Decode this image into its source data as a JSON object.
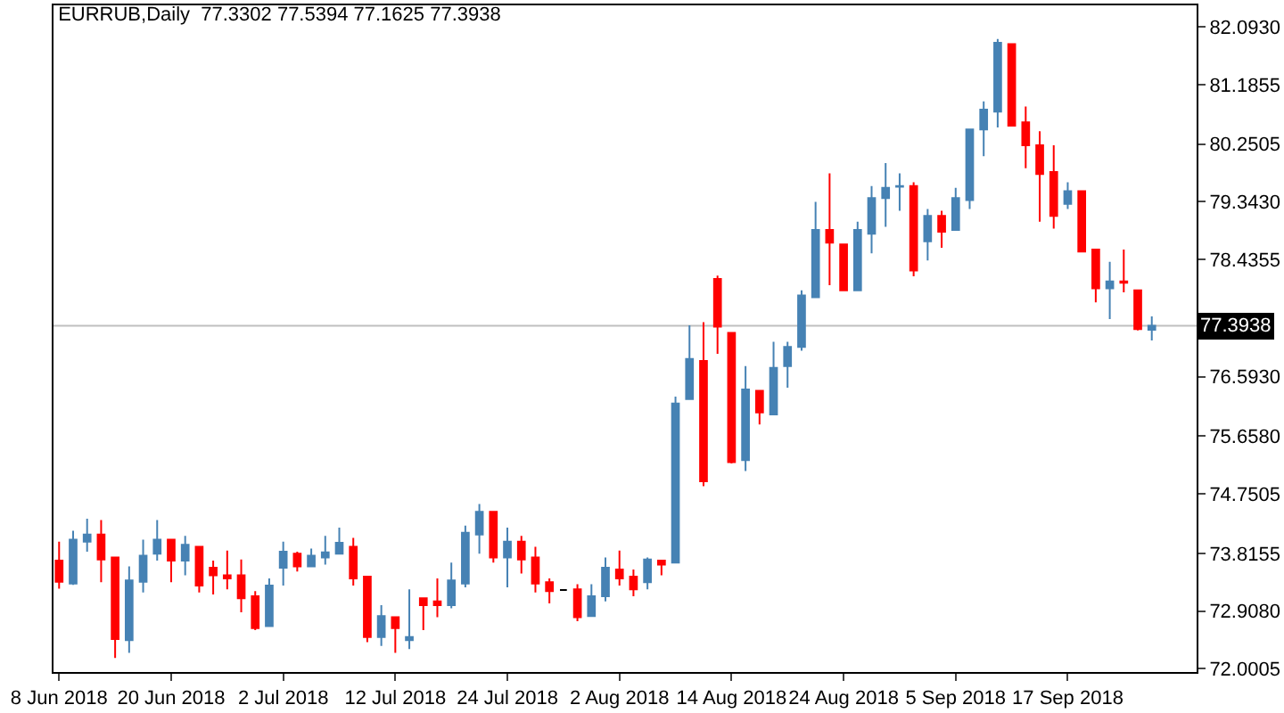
{
  "chart_data": {
    "type": "candlestick",
    "title": "EURRUB,Daily  77.3302 77.5394 77.1625 77.3938",
    "categories": [
      "8 Jun 2018",
      null,
      null,
      null,
      null,
      null,
      null,
      null,
      "20 Jun 2018",
      null,
      null,
      null,
      null,
      null,
      null,
      null,
      "2 Jul 2018",
      null,
      null,
      null,
      null,
      null,
      null,
      null,
      "12 Jul 2018",
      null,
      null,
      null,
      null,
      null,
      null,
      null,
      "24 Jul 2018",
      null,
      null,
      null,
      null,
      null,
      null,
      null,
      "2 Aug 2018",
      null,
      null,
      null,
      null,
      null,
      null,
      null,
      "14 Aug 2018",
      null,
      null,
      null,
      null,
      null,
      null,
      null,
      "24 Aug 2018",
      null,
      null,
      null,
      null,
      null,
      null,
      null,
      "5 Sep 2018",
      null,
      null,
      null,
      null,
      null,
      null,
      null,
      "17 Sep 2018",
      null,
      null,
      null,
      null,
      null,
      null
    ],
    "ohlc": [
      [
        73.7,
        74.0,
        73.26,
        73.37
      ],
      [
        73.34,
        74.17,
        73.32,
        74.03
      ],
      [
        74.0,
        74.36,
        73.84,
        74.11
      ],
      [
        74.11,
        74.34,
        73.36,
        73.72
      ],
      [
        73.75,
        73.75,
        72.17,
        72.47
      ],
      [
        72.45,
        73.61,
        72.25,
        73.39
      ],
      [
        73.37,
        74.03,
        73.2,
        73.78
      ],
      [
        73.81,
        74.34,
        73.7,
        74.03
      ],
      [
        74.03,
        74.03,
        73.36,
        73.7
      ],
      [
        73.7,
        74.09,
        73.47,
        73.95
      ],
      [
        73.92,
        73.92,
        73.2,
        73.31
      ],
      [
        73.59,
        73.7,
        73.17,
        73.47
      ],
      [
        73.47,
        73.86,
        73.25,
        73.42
      ],
      [
        73.47,
        73.72,
        72.89,
        73.11
      ],
      [
        73.14,
        73.22,
        72.61,
        72.64
      ],
      [
        72.67,
        73.42,
        72.67,
        73.31
      ],
      [
        73.59,
        74.0,
        73.31,
        73.84
      ],
      [
        73.81,
        73.84,
        73.53,
        73.61
      ],
      [
        73.61,
        73.89,
        73.61,
        73.78
      ],
      [
        73.75,
        74.09,
        73.64,
        73.83
      ],
      [
        73.81,
        74.22,
        73.81,
        73.98
      ],
      [
        73.92,
        74.06,
        73.31,
        73.42
      ],
      [
        73.45,
        73.45,
        72.42,
        72.5
      ],
      [
        72.5,
        73.0,
        72.36,
        72.83
      ],
      [
        72.81,
        72.81,
        72.25,
        72.64
      ],
      [
        72.45,
        73.25,
        72.31,
        72.5
      ],
      [
        73.11,
        73.11,
        72.61,
        73.0
      ],
      [
        73.06,
        73.42,
        72.81,
        73.0
      ],
      [
        73.0,
        73.67,
        72.95,
        73.39
      ],
      [
        73.34,
        74.25,
        73.28,
        74.14
      ],
      [
        74.11,
        74.59,
        73.81,
        74.47
      ],
      [
        74.47,
        74.47,
        73.67,
        73.75
      ],
      [
        73.75,
        74.22,
        73.28,
        74.0
      ],
      [
        74.0,
        74.09,
        73.5,
        73.72
      ],
      [
        73.75,
        73.92,
        73.2,
        73.34
      ],
      [
        73.36,
        73.42,
        73.03,
        73.22
      ],
      [
        73.24,
        73.24,
        73.24,
        73.24
      ],
      [
        73.25,
        73.33,
        72.75,
        72.81
      ],
      [
        72.83,
        73.33,
        72.83,
        73.14
      ],
      [
        73.14,
        73.75,
        73.06,
        73.59
      ],
      [
        73.56,
        73.86,
        73.31,
        73.42
      ],
      [
        73.45,
        73.56,
        73.14,
        73.25
      ],
      [
        73.36,
        73.75,
        73.25,
        73.72
      ],
      [
        73.7,
        73.7,
        73.47,
        73.64
      ],
      [
        73.67,
        76.28,
        73.67,
        76.17
      ],
      [
        76.24,
        77.4,
        76.24,
        76.87
      ],
      [
        76.84,
        77.45,
        74.87,
        74.95
      ],
      [
        78.13,
        78.18,
        76.95,
        77.38
      ],
      [
        77.28,
        77.28,
        75.23,
        75.25
      ],
      [
        75.28,
        76.76,
        75.11,
        76.39
      ],
      [
        76.37,
        76.37,
        75.84,
        76.03
      ],
      [
        76.0,
        77.14,
        76.0,
        76.73
      ],
      [
        76.76,
        77.14,
        76.42,
        77.06
      ],
      [
        77.06,
        77.95,
        77.0,
        77.87
      ],
      [
        77.84,
        79.34,
        77.84,
        78.9
      ],
      [
        78.9,
        79.79,
        78.03,
        78.7
      ],
      [
        78.67,
        78.67,
        77.95,
        77.95
      ],
      [
        77.95,
        79.03,
        77.95,
        78.9
      ],
      [
        78.84,
        79.59,
        78.53,
        79.4
      ],
      [
        79.4,
        79.95,
        78.95,
        79.56
      ],
      [
        79.58,
        79.79,
        79.2,
        79.59
      ],
      [
        79.59,
        79.65,
        78.17,
        78.26
      ],
      [
        78.72,
        79.23,
        78.42,
        79.12
      ],
      [
        79.12,
        79.2,
        78.62,
        78.87
      ],
      [
        78.9,
        79.56,
        78.9,
        79.4
      ],
      [
        79.37,
        80.48,
        79.23,
        80.48
      ],
      [
        80.48,
        80.92,
        80.06,
        80.79
      ],
      [
        80.76,
        81.9,
        80.51,
        81.84
      ],
      [
        81.82,
        81.82,
        80.54,
        80.54
      ],
      [
        80.59,
        80.84,
        79.87,
        80.23
      ],
      [
        80.23,
        80.45,
        79.03,
        79.78
      ],
      [
        79.81,
        80.23,
        78.92,
        79.12
      ],
      [
        79.31,
        79.65,
        79.23,
        79.51
      ],
      [
        79.51,
        79.51,
        78.56,
        78.56
      ],
      [
        78.59,
        78.59,
        77.76,
        77.98
      ],
      [
        77.98,
        78.4,
        77.5,
        78.09
      ],
      [
        78.09,
        78.59,
        77.92,
        78.07
      ],
      [
        77.95,
        77.95,
        77.32,
        77.34
      ],
      [
        77.3302,
        77.5394,
        77.1625,
        77.3938
      ]
    ],
    "colors": [
      "#ff0000",
      "#4682b4",
      "#4682b4",
      "#ff0000",
      "#ff0000",
      "#4682b4",
      "#4682b4",
      "#4682b4",
      "#ff0000",
      "#4682b4",
      "#ff0000",
      "#ff0000",
      "#ff0000",
      "#ff0000",
      "#ff0000",
      "#4682b4",
      "#4682b4",
      "#ff0000",
      "#4682b4",
      "#4682b4",
      "#4682b4",
      "#ff0000",
      "#ff0000",
      "#4682b4",
      "#ff0000",
      "#4682b4",
      "#ff0000",
      "#ff0000",
      "#4682b4",
      "#4682b4",
      "#4682b4",
      "#ff0000",
      "#4682b4",
      "#ff0000",
      "#ff0000",
      "#ff0000",
      "#000000",
      "#ff0000",
      "#4682b4",
      "#4682b4",
      "#ff0000",
      "#ff0000",
      "#4682b4",
      "#ff0000",
      "#4682b4",
      "#4682b4",
      "#ff0000",
      "#ff0000",
      "#ff0000",
      "#4682b4",
      "#ff0000",
      "#4682b4",
      "#4682b4",
      "#4682b4",
      "#4682b4",
      "#ff0000",
      "#ff0000",
      "#4682b4",
      "#4682b4",
      "#4682b4",
      "#4682b4",
      "#ff0000",
      "#4682b4",
      "#ff0000",
      "#4682b4",
      "#4682b4",
      "#4682b4",
      "#4682b4",
      "#ff0000",
      "#ff0000",
      "#ff0000",
      "#ff0000",
      "#4682b4",
      "#ff0000",
      "#ff0000",
      "#4682b4",
      "#ff0000",
      "#ff0000",
      "#4682b4"
    ],
    "ylim": [
      71.95,
      82.43
    ],
    "yticks": [
      {
        "value": 72.0005,
        "label": "72.0005"
      },
      {
        "value": 72.908,
        "label": "72.9080"
      },
      {
        "value": 73.8155,
        "label": "73.8155"
      },
      {
        "value": 74.7505,
        "label": "74.7505"
      },
      {
        "value": 75.658,
        "label": "75.6580"
      },
      {
        "value": 76.593,
        "label": "76.5930"
      },
      {
        "value": 78.4355,
        "label": "78.4355"
      },
      {
        "value": 79.343,
        "label": "79.3430"
      },
      {
        "value": 80.2505,
        "label": "80.2505"
      },
      {
        "value": 81.1855,
        "label": "81.1855"
      },
      {
        "value": 82.093,
        "label": "82.0930"
      }
    ],
    "ref_lines": [
      {
        "axis": "y",
        "value": 77.3938,
        "label": "77.3938",
        "color": "#c0c0c0"
      }
    ],
    "grid": false
  }
}
